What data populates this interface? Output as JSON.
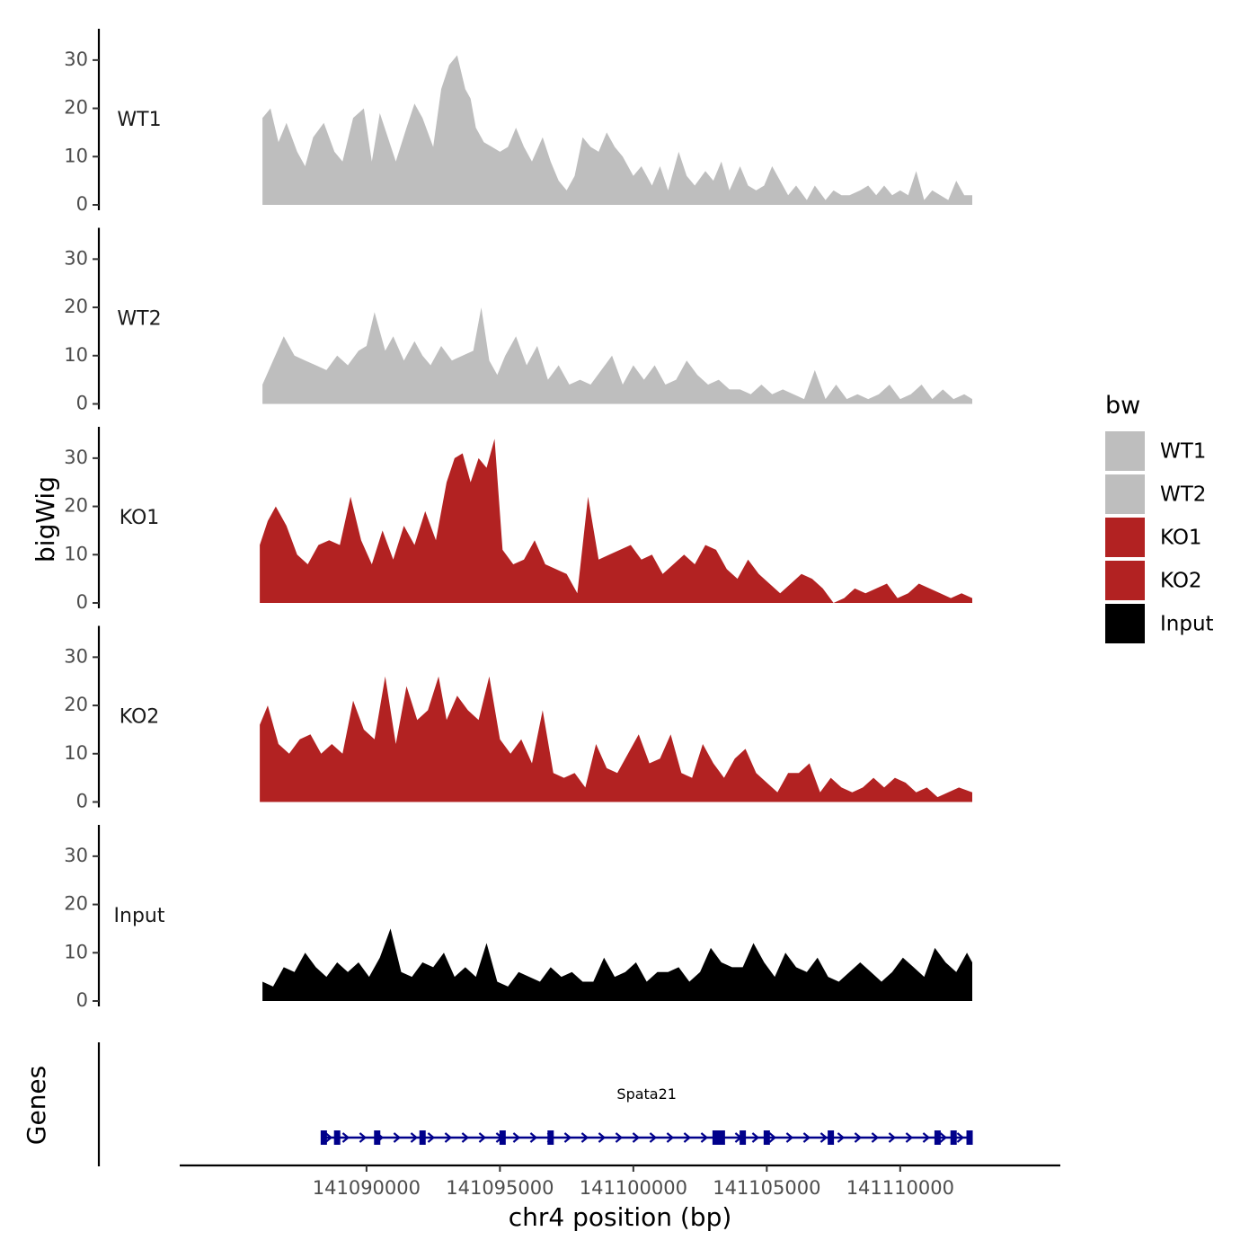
{
  "chart_data": {
    "type": "area",
    "ylabel": "bigWig",
    "genes_label": "Genes",
    "xlabel": "chr4 position (bp)",
    "x_range": [
      141083000,
      141116000
    ],
    "x_ticks": [
      141090000,
      141095000,
      141100000,
      141105000,
      141110000
    ],
    "x_tick_labels": [
      "141090000",
      "141095000",
      "141100000",
      "141105000",
      "141110000"
    ],
    "y_range": [
      0,
      35
    ],
    "y_ticks": [
      0,
      10,
      20,
      30
    ],
    "y_tick_labels": [
      "0",
      "10",
      "20",
      "30"
    ],
    "legend": {
      "title": "bw",
      "position": "right",
      "entries": [
        {
          "label": "WT1",
          "color": "#BEBEBE"
        },
        {
          "label": "WT2",
          "color": "#BEBEBE"
        },
        {
          "label": "KO1",
          "color": "#B22222"
        },
        {
          "label": "KO2",
          "color": "#B22222"
        },
        {
          "label": "Input",
          "color": "#000000"
        }
      ]
    },
    "series": [
      {
        "name": "WT1",
        "color": "#BEBEBE",
        "x": [
          141086100,
          141086400,
          141086700,
          141087000,
          141087400,
          141087700,
          141088000,
          141088400,
          141088800,
          141089100,
          141089500,
          141089900,
          141090200,
          141090500,
          141090800,
          141091100,
          141091500,
          141091800,
          141092100,
          141092500,
          141092800,
          141093100,
          141093400,
          141093700,
          141093900,
          141094100,
          141094400,
          141094700,
          141095000,
          141095300,
          141095600,
          141095900,
          141096200,
          141096600,
          141096900,
          141097200,
          141097500,
          141097800,
          141098100,
          141098400,
          141098700,
          141099000,
          141099300,
          141099600,
          141100000,
          141100300,
          141100700,
          141101000,
          141101300,
          141101700,
          141102000,
          141102300,
          141102700,
          141103000,
          141103300,
          141103600,
          141104000,
          141104300,
          141104600,
          141104900,
          141105200,
          141105500,
          141105800,
          141106100,
          141106500,
          141106800,
          141107200,
          141107500,
          141107800,
          141108100,
          141108500,
          141108800,
          141109100,
          141109400,
          141109700,
          141110000,
          141110300,
          141110600,
          141110900,
          141111200,
          141111500,
          141111800,
          141112100,
          141112400,
          141112700
        ],
        "values": [
          18,
          20,
          13,
          17,
          11,
          8,
          14,
          17,
          11,
          9,
          18,
          20,
          9,
          19,
          14,
          9,
          16,
          21,
          18,
          12,
          24,
          29,
          31,
          24,
          22,
          16,
          13,
          12,
          11,
          12,
          16,
          12,
          9,
          14,
          9,
          5,
          3,
          6,
          14,
          12,
          11,
          15,
          12,
          10,
          6,
          8,
          4,
          8,
          3,
          11,
          6,
          4,
          7,
          5,
          9,
          3,
          8,
          4,
          3,
          4,
          8,
          5,
          2,
          4,
          1,
          4,
          1,
          3,
          2,
          2,
          3,
          4,
          2,
          4,
          2,
          3,
          2,
          7,
          1,
          3,
          2,
          1,
          5,
          2,
          2
        ]
      },
      {
        "name": "WT2",
        "color": "#BEBEBE",
        "x": [
          141086100,
          141086500,
          141086900,
          141087300,
          141087700,
          141088100,
          141088500,
          141088900,
          141089300,
          141089700,
          141090000,
          141090300,
          141090700,
          141091000,
          141091400,
          141091800,
          141092100,
          141092400,
          141092800,
          141093200,
          141093600,
          141094000,
          141094300,
          141094600,
          141094900,
          141095200,
          141095600,
          141096000,
          141096400,
          141096800,
          141097200,
          141097600,
          141098000,
          141098400,
          141098800,
          141099200,
          141099600,
          141100000,
          141100400,
          141100800,
          141101200,
          141101600,
          141102000,
          141102400,
          141102800,
          141103200,
          141103600,
          141104000,
          141104400,
          141104800,
          141105200,
          141105600,
          141106000,
          141106400,
          141106800,
          141107200,
          141107600,
          141108000,
          141108400,
          141108800,
          141109200,
          141109600,
          141110000,
          141110400,
          141110800,
          141111200,
          141111600,
          141112000,
          141112400,
          141112700
        ],
        "values": [
          4,
          9,
          14,
          10,
          9,
          8,
          7,
          10,
          8,
          11,
          12,
          19,
          11,
          14,
          9,
          13,
          10,
          8,
          12,
          9,
          10,
          11,
          20,
          9,
          6,
          10,
          14,
          8,
          12,
          5,
          8,
          4,
          5,
          4,
          7,
          10,
          4,
          8,
          5,
          8,
          4,
          5,
          9,
          6,
          4,
          5,
          3,
          3,
          2,
          4,
          2,
          3,
          2,
          1,
          7,
          1,
          4,
          1,
          2,
          1,
          2,
          4,
          1,
          2,
          4,
          1,
          3,
          1,
          2,
          1
        ]
      },
      {
        "name": "KO1",
        "color": "#B22222",
        "x": [
          141086000,
          141086300,
          141086600,
          141087000,
          141087400,
          141087800,
          141088200,
          141088600,
          141089000,
          141089400,
          141089800,
          141090200,
          141090600,
          141091000,
          141091400,
          141091800,
          141092200,
          141092600,
          141093000,
          141093300,
          141093600,
          141093900,
          141094200,
          141094500,
          141094800,
          141095100,
          141095500,
          141095900,
          141096300,
          141096700,
          141097100,
          141097500,
          141097900,
          141098300,
          141098700,
          141099100,
          141099500,
          141099900,
          141100300,
          141100700,
          141101100,
          141101500,
          141101900,
          141102300,
          141102700,
          141103100,
          141103500,
          141103900,
          141104300,
          141104700,
          141105100,
          141105500,
          141105900,
          141106300,
          141106700,
          141107100,
          141107500,
          141107900,
          141108300,
          141108700,
          141109100,
          141109500,
          141109900,
          141110300,
          141110700,
          141111100,
          141111500,
          141111900,
          141112300,
          141112700
        ],
        "values": [
          12,
          17,
          20,
          16,
          10,
          8,
          12,
          13,
          12,
          22,
          13,
          8,
          15,
          9,
          16,
          12,
          19,
          13,
          25,
          30,
          31,
          25,
          30,
          28,
          34,
          11,
          8,
          9,
          13,
          8,
          7,
          6,
          2,
          22,
          9,
          10,
          11,
          12,
          9,
          10,
          6,
          8,
          10,
          8,
          12,
          11,
          7,
          5,
          9,
          6,
          4,
          2,
          4,
          6,
          5,
          3,
          0,
          1,
          3,
          2,
          3,
          4,
          1,
          2,
          4,
          3,
          2,
          1,
          2,
          1
        ]
      },
      {
        "name": "KO2",
        "color": "#B22222",
        "x": [
          141086000,
          141086300,
          141086700,
          141087100,
          141087500,
          141087900,
          141088300,
          141088700,
          141089100,
          141089500,
          141089900,
          141090300,
          141090700,
          141091100,
          141091500,
          141091900,
          141092300,
          141092700,
          141093000,
          141093400,
          141093800,
          141094200,
          141094600,
          141095000,
          141095400,
          141095800,
          141096200,
          141096600,
          141097000,
          141097400,
          141097800,
          141098200,
          141098600,
          141099000,
          141099400,
          141099800,
          141100200,
          141100600,
          141101000,
          141101400,
          141101800,
          141102200,
          141102600,
          141103000,
          141103400,
          141103800,
          141104200,
          141104600,
          141105000,
          141105400,
          141105800,
          141106200,
          141106600,
          141107000,
          141107400,
          141107800,
          141108200,
          141108600,
          141109000,
          141109400,
          141109800,
          141110200,
          141110600,
          141111000,
          141111400,
          141111800,
          141112200,
          141112700
        ],
        "values": [
          16,
          20,
          12,
          10,
          13,
          14,
          10,
          12,
          10,
          21,
          15,
          13,
          26,
          12,
          24,
          17,
          19,
          26,
          17,
          22,
          19,
          17,
          26,
          13,
          10,
          13,
          8,
          19,
          6,
          5,
          6,
          3,
          12,
          7,
          6,
          10,
          14,
          8,
          9,
          14,
          6,
          5,
          12,
          8,
          5,
          9,
          11,
          6,
          4,
          2,
          6,
          6,
          8,
          2,
          5,
          3,
          2,
          3,
          5,
          3,
          5,
          4,
          2,
          3,
          1,
          2,
          3,
          2
        ]
      },
      {
        "name": "Input",
        "color": "#000000",
        "x": [
          141086100,
          141086500,
          141086900,
          141087300,
          141087700,
          141088100,
          141088500,
          141088900,
          141089300,
          141089700,
          141090100,
          141090500,
          141090900,
          141091300,
          141091700,
          141092100,
          141092500,
          141092900,
          141093300,
          141093700,
          141094100,
          141094500,
          141094900,
          141095300,
          141095700,
          141096100,
          141096500,
          141096900,
          141097300,
          141097700,
          141098100,
          141098500,
          141098900,
          141099300,
          141099700,
          141100100,
          141100500,
          141100900,
          141101300,
          141101700,
          141102100,
          141102500,
          141102900,
          141103300,
          141103700,
          141104100,
          141104500,
          141104900,
          141105300,
          141105700,
          141106100,
          141106500,
          141106900,
          141107300,
          141107700,
          141108100,
          141108500,
          141108900,
          141109300,
          141109700,
          141110100,
          141110500,
          141110900,
          141111300,
          141111700,
          141112100,
          141112500,
          141112700
        ],
        "values": [
          4,
          3,
          7,
          6,
          10,
          7,
          5,
          8,
          6,
          8,
          5,
          9,
          15,
          6,
          5,
          8,
          7,
          10,
          5,
          7,
          5,
          12,
          4,
          3,
          6,
          5,
          4,
          7,
          5,
          6,
          4,
          4,
          9,
          5,
          6,
          8,
          4,
          6,
          6,
          7,
          4,
          6,
          11,
          8,
          7,
          7,
          12,
          8,
          5,
          10,
          7,
          6,
          9,
          5,
          4,
          6,
          8,
          6,
          4,
          6,
          9,
          7,
          5,
          11,
          8,
          6,
          10,
          8
        ]
      }
    ],
    "genes": [
      {
        "name": "Spata21",
        "start": 141088300,
        "end": 141112700,
        "strand": "+",
        "color": "#00008B",
        "exons": [
          141088400,
          141088900,
          141090400,
          141092100,
          141095100,
          141096900,
          141103200,
          141104100,
          141105000,
          141107400,
          141111400,
          141112000,
          141112600
        ]
      }
    ]
  }
}
